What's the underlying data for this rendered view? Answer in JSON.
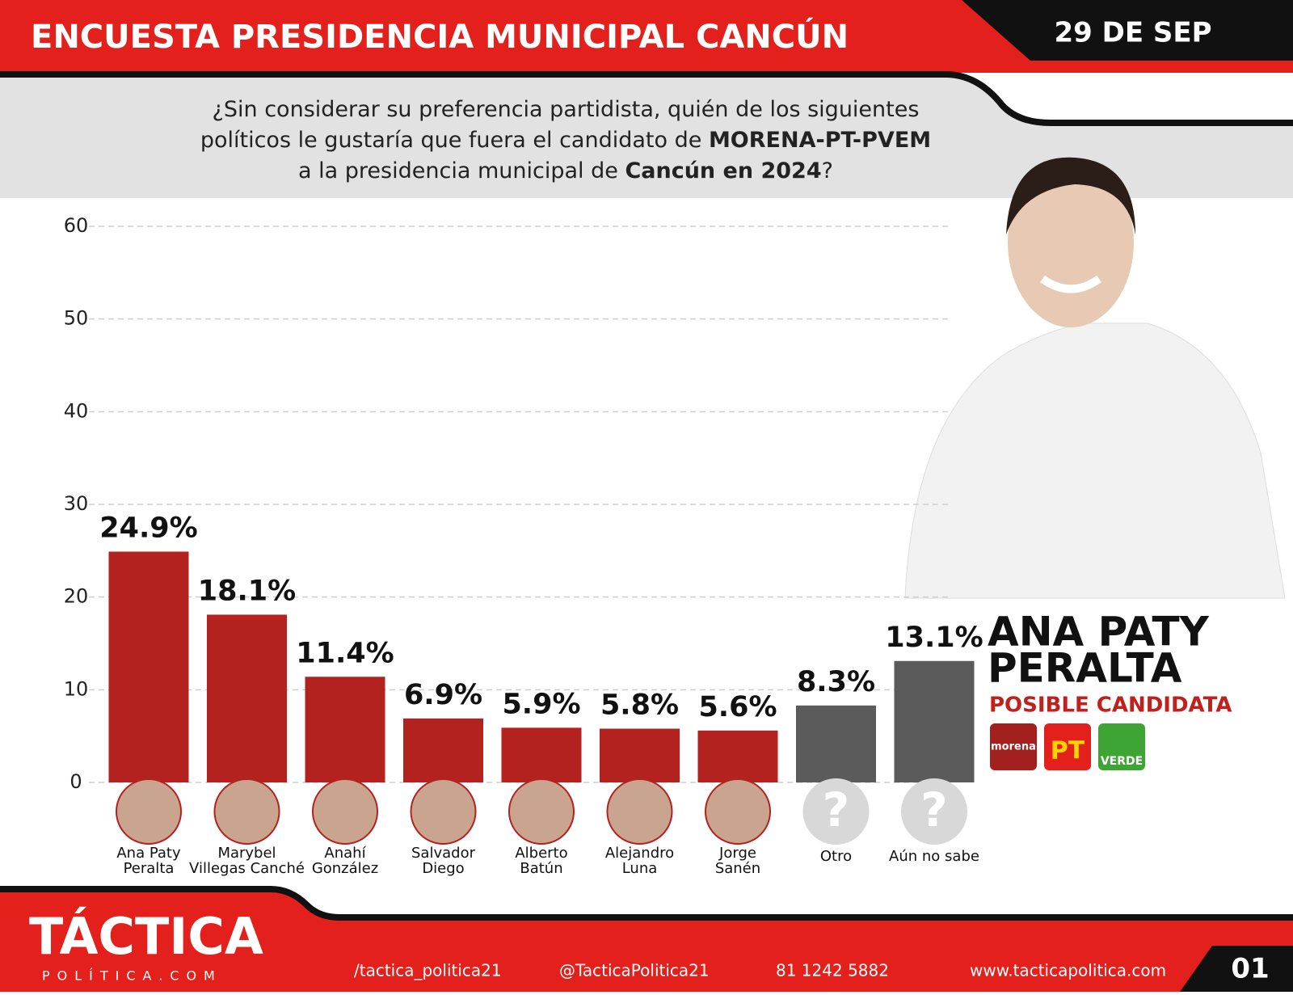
{
  "header": {
    "title": "ENCUESTA PRESIDENCIA MUNICIPAL CANCÚN",
    "date": "29 DE SEP"
  },
  "question": [
    [
      "¿Sin considerar su preferencia partidista, quién de los siguientes"
    ],
    [
      "políticos le gustaría que fuera el candidato de ",
      "MORENA-PT-PVEM"
    ],
    [
      "a la presidencia municipal de ",
      "Cancún en 2024",
      "?"
    ]
  ],
  "chart_data": {
    "type": "bar",
    "categories": [
      [
        "Ana Paty",
        "Peralta"
      ],
      [
        "Marybel",
        "Villegas Canché"
      ],
      [
        "Anahí",
        "González"
      ],
      [
        "Salvador",
        "Diego"
      ],
      [
        "Alberto",
        "Batún"
      ],
      [
        "Alejandro",
        "Luna"
      ],
      [
        "Jorge",
        "Sanén"
      ],
      [
        "Otro"
      ],
      [
        "Aún no sabe"
      ]
    ],
    "values": [
      24.9,
      18.1,
      11.4,
      6.9,
      5.9,
      5.8,
      5.6,
      8.3,
      13.1
    ],
    "value_labels": [
      "24.9%",
      "18.1%",
      "11.4%",
      "6.9%",
      "5.9%",
      "5.8%",
      "5.6%",
      "8.3%",
      "13.1%"
    ],
    "colors": [
      "#b3221f",
      "#b3221f",
      "#b3221f",
      "#b3221f",
      "#b3221f",
      "#b3221f",
      "#b3221f",
      "#5b5b5b",
      "#5b5b5b"
    ],
    "ylim": [
      0,
      60
    ],
    "yticks": [
      0,
      10,
      20,
      30,
      40,
      50,
      60
    ],
    "grid": true,
    "unknown_icon": "?"
  },
  "candidate": {
    "name": [
      "ANA PATY",
      "PERALTA"
    ],
    "subtitle": "POSIBLE CANDIDATA",
    "parties": [
      "morena",
      "PT",
      "VERDE"
    ]
  },
  "footer": {
    "logo": "TÁCTICA",
    "logo_sub": "POLÍTICA.COM",
    "facebook": "/tactica_politica21",
    "instagram": "@TacticaPolitica21",
    "phone": "81 1242 5882",
    "website": "www.tacticapolitica.com",
    "page": "01"
  }
}
